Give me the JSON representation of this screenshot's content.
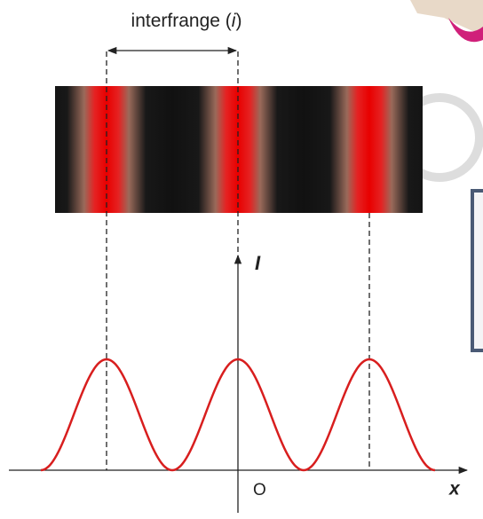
{
  "fringe_label": [
    "interfrange (",
    "i",
    ")"
  ],
  "intensity_axis": "I",
  "origin": "O",
  "position_axis": "x"
}
